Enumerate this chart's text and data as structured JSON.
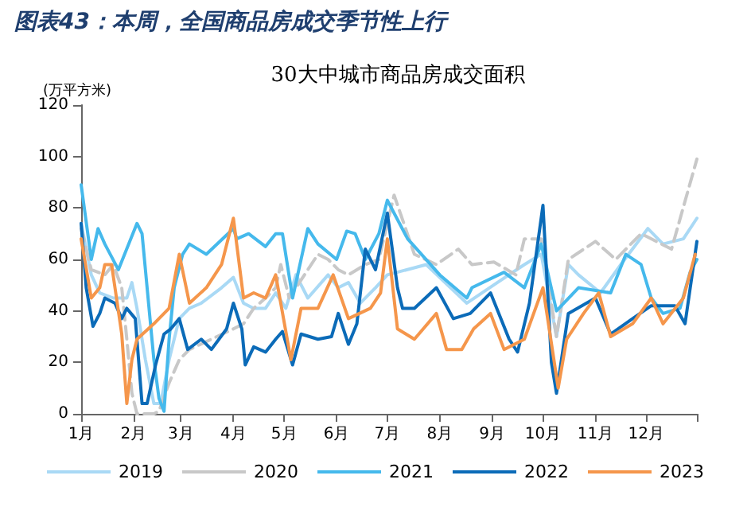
{
  "chart_data": {
    "type": "line",
    "title": "图表43：本周，全国商品房成交季节性上行",
    "subtitle": "30大中城市商品房成交面积",
    "ylabel": "(万平方米)",
    "xlim": [
      "--01-01",
      "--12-31"
    ],
    "xticks": [
      {
        "value": "--01-01",
        "label": "1月"
      },
      {
        "value": "--02-01",
        "label": "2月"
      },
      {
        "value": "--03-01",
        "label": "3月"
      },
      {
        "value": "--04-01",
        "label": "4月"
      },
      {
        "value": "--05-01",
        "label": "5月"
      },
      {
        "value": "--06-01",
        "label": "6月"
      },
      {
        "value": "--07-01",
        "label": "7月"
      },
      {
        "value": "--08-01",
        "label": "8月"
      },
      {
        "value": "--09-01",
        "label": "9月"
      },
      {
        "value": "--10-01",
        "label": "10月"
      },
      {
        "value": "--11-01",
        "label": "11月"
      },
      {
        "value": "--12-01",
        "label": "12月"
      },
      {
        "value": "--12-31",
        "label": null
      }
    ],
    "ylim": [
      0,
      120
    ],
    "yticks": [
      0,
      20,
      40,
      60,
      80,
      100,
      120
    ],
    "grid": false,
    "legend": "bottom",
    "marker": "none",
    "series": [
      {
        "name": "2019",
        "color": "#a9d9f5",
        "line_style": "solid",
        "x": [
          "--01-01",
          "--01-07",
          "--01-12",
          "--01-20",
          "--01-28",
          "--01-31",
          "--02-03",
          "--02-08",
          "--02-13",
          "--02-17",
          "--02-22",
          "--02-28",
          "--03-06",
          "--03-13",
          "--03-25",
          "--04-01",
          "--04-07",
          "--04-13",
          "--04-20",
          "--04-26",
          "--05-02",
          "--05-08",
          "--05-15",
          "--05-27",
          "--06-02",
          "--06-08",
          "--06-15",
          "--06-24",
          "--07-01",
          "--07-24",
          "--08-17",
          "--09-04",
          "--09-20",
          "--09-30",
          "--10-09",
          "--10-16",
          "--10-22",
          "--11-04",
          "--11-16",
          "--12-02",
          "--12-11",
          "--12-23",
          "--12-31"
        ],
        "values": [
          74,
          54,
          47,
          45,
          45,
          51,
          41,
          21,
          4,
          4,
          21,
          37,
          41,
          43,
          49,
          53,
          43,
          41,
          41,
          47,
          41,
          54,
          45,
          54,
          49,
          51,
          43,
          49,
          54,
          58,
          43,
          51,
          58,
          62,
          30,
          58,
          54,
          47,
          58,
          72,
          66,
          68,
          76
        ]
      },
      {
        "name": "2020",
        "color": "#c8c8c8",
        "line_style": "dashed",
        "x": [
          "--01-01",
          "--01-07",
          "--01-15",
          "--01-20",
          "--01-25",
          "--01-28",
          "--01-31",
          "--02-03",
          "--02-13",
          "--02-16",
          "--02-22",
          "--02-28",
          "--03-06",
          "--03-19",
          "--04-01",
          "--04-07",
          "--04-13",
          "--04-20",
          "--04-26",
          "--04-29",
          "--05-04",
          "--05-08",
          "--05-15",
          "--05-21",
          "--05-27",
          "--06-02",
          "--06-08",
          "--06-18",
          "--06-26",
          "--07-05",
          "--07-17",
          "--07-30",
          "--08-12",
          "--08-20",
          "--09-02",
          "--09-15",
          "--09-20",
          "--09-30",
          "--10-09",
          "--10-16",
          "--11-01",
          "--11-13",
          "--11-28",
          "--12-16",
          "--12-31"
        ],
        "values": [
          72,
          56,
          54,
          58,
          49,
          29,
          8,
          0,
          0,
          1,
          12,
          21,
          25,
          29,
          33,
          35,
          41,
          45,
          49,
          58,
          45,
          49,
          56,
          62,
          60,
          56,
          54,
          58,
          60,
          85,
          62,
          58,
          64,
          58,
          59,
          54,
          68,
          68,
          30,
          60,
          67,
          60,
          70,
          64,
          99
        ]
      },
      {
        "name": "2021",
        "color": "#45b9ec",
        "line_style": "solid",
        "x": [
          "--01-01",
          "--01-07",
          "--01-11",
          "--01-15",
          "--01-23",
          "--02-03",
          "--02-06",
          "--02-09",
          "--02-13",
          "--02-16",
          "--02-19",
          "--02-22",
          "--02-25",
          "--03-02",
          "--03-06",
          "--03-16",
          "--04-01",
          "--04-03",
          "--04-10",
          "--04-20",
          "--04-26",
          "--04-30",
          "--05-06",
          "--05-15",
          "--05-21",
          "--06-01",
          "--06-07",
          "--06-12",
          "--06-18",
          "--06-26",
          "--07-01",
          "--07-13",
          "--08-01",
          "--08-17",
          "--08-20",
          "--09-08",
          "--09-20",
          "--09-30",
          "--10-09",
          "--10-22",
          "--11-10",
          "--11-19",
          "--11-28",
          "--12-04",
          "--12-11",
          "--12-21",
          "--12-27",
          "--12-31"
        ],
        "values": [
          89,
          60,
          72,
          66,
          56,
          74,
          70,
          49,
          21,
          6,
          1,
          29,
          49,
          62,
          66,
          62,
          72,
          68,
          70,
          65,
          70,
          70,
          45,
          72,
          66,
          60,
          71,
          70,
          60,
          70,
          83,
          68,
          54,
          45,
          49,
          55,
          49,
          66,
          40,
          49,
          47,
          62,
          58,
          45,
          39,
          41,
          55,
          60
        ]
      },
      {
        "name": "2022",
        "color": "#0b6bb8",
        "line_style": "solid",
        "x": [
          "--01-01",
          "--01-04",
          "--01-08",
          "--01-12",
          "--01-15",
          "--01-21",
          "--01-25",
          "--01-28",
          "--02-02",
          "--02-06",
          "--02-09",
          "--02-14",
          "--02-19",
          "--02-23",
          "--02-28",
          "--03-05",
          "--03-13",
          "--03-19",
          "--03-28",
          "--04-01",
          "--04-06",
          "--04-08",
          "--04-13",
          "--04-20",
          "--04-26",
          "--04-30",
          "--05-06",
          "--05-11",
          "--05-21",
          "--05-29",
          "--06-02",
          "--06-08",
          "--06-13",
          "--06-18",
          "--06-24",
          "--07-01",
          "--07-07",
          "--07-10",
          "--07-17",
          "--07-30",
          "--08-09",
          "--08-19",
          "--08-31",
          "--09-11",
          "--09-16",
          "--09-23",
          "--10-01",
          "--10-06",
          "--10-09",
          "--10-16",
          "--11-01",
          "--11-10",
          "--11-23",
          "--12-04",
          "--12-18",
          "--12-24",
          "--12-31"
        ],
        "values": [
          74,
          49,
          34,
          39,
          45,
          43,
          37,
          41,
          37,
          4,
          4,
          19,
          31,
          33,
          37,
          25,
          29,
          25,
          33,
          43,
          33,
          19,
          26,
          24,
          29,
          32,
          19,
          31,
          29,
          30,
          39,
          27,
          35,
          64,
          56,
          78,
          49,
          41,
          41,
          49,
          37,
          39,
          47,
          29,
          24,
          43,
          81,
          20,
          8,
          39,
          45,
          31,
          37,
          42,
          42,
          35,
          67
        ]
      },
      {
        "name": "2023",
        "color": "#f5964b",
        "line_style": "solid",
        "x": [
          "--01-01",
          "--01-07",
          "--01-12",
          "--01-15",
          "--01-19",
          "--01-21",
          "--01-25",
          "--01-28",
          "--01-31",
          "--02-03",
          "--02-13",
          "--02-22",
          "--02-28",
          "--03-06",
          "--03-16",
          "--03-25",
          "--04-01",
          "--04-07",
          "--04-13",
          "--04-20",
          "--04-26",
          "--05-05",
          "--05-11",
          "--05-21",
          "--05-30",
          "--06-08",
          "--06-21",
          "--06-27",
          "--07-01",
          "--07-07",
          "--07-17",
          "--07-30",
          "--08-05",
          "--08-14",
          "--08-21",
          "--08-31",
          "--09-08",
          "--09-20",
          "--10-01",
          "--10-10",
          "--10-15",
          "--10-25",
          "--11-03",
          "--11-10",
          "--11-23",
          "--12-04",
          "--12-11",
          "--12-23",
          "--12-30"
        ],
        "values": [
          68,
          45,
          49,
          58,
          58,
          49,
          31,
          4,
          21,
          29,
          35,
          41,
          62,
          43,
          49,
          58,
          76,
          45,
          47,
          45,
          54,
          21,
          41,
          41,
          54,
          37,
          41,
          47,
          68,
          33,
          29,
          39,
          25,
          25,
          33,
          39,
          25,
          29,
          49,
          10,
          29,
          39,
          47,
          30,
          35,
          45,
          35,
          45,
          62
        ]
      }
    ]
  }
}
